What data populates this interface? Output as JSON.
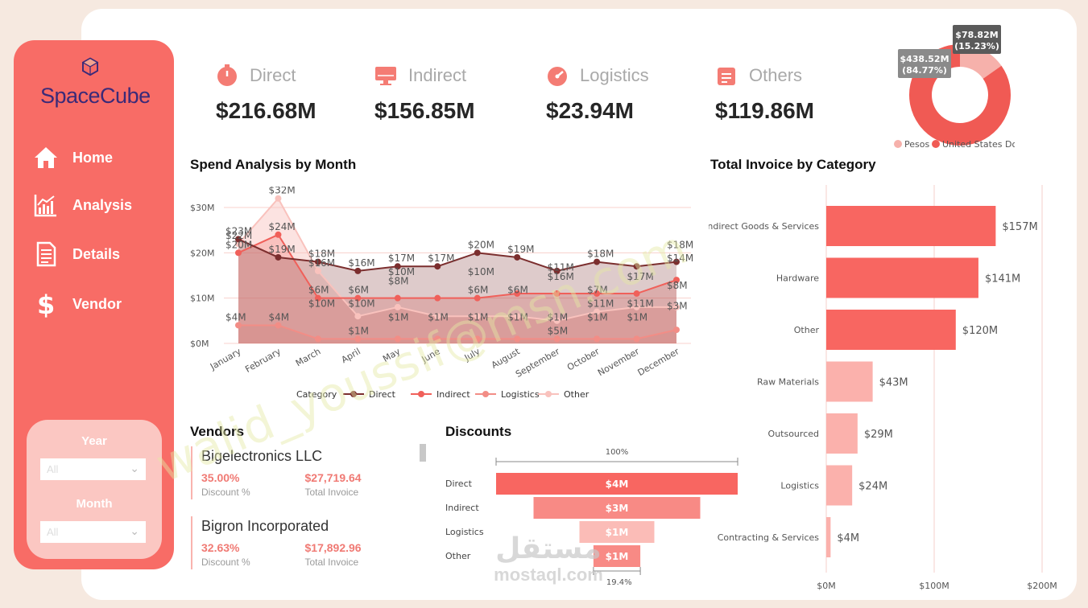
{
  "brand": {
    "name": "SpaceCube"
  },
  "nav": [
    {
      "label": "Home",
      "icon": "home-icon"
    },
    {
      "label": "Analysis",
      "icon": "analysis-icon"
    },
    {
      "label": "Details",
      "icon": "document-icon"
    },
    {
      "label": "Vendor",
      "icon": "dollar-icon"
    }
  ],
  "filters": {
    "year": {
      "label": "Year",
      "value": "All"
    },
    "month": {
      "label": "Month",
      "value": "All"
    }
  },
  "kpis": [
    {
      "label": "Direct",
      "value": "$216.68M",
      "icon": "timer-icon"
    },
    {
      "label": "Indirect",
      "value": "$156.85M",
      "icon": "monitor-icon"
    },
    {
      "label": "Logistics",
      "value": "$23.94M",
      "icon": "speed-icon"
    },
    {
      "label": "Others",
      "value": "$119.86M",
      "icon": "calendar-icon"
    }
  ],
  "colors": {
    "accent": "#f86c66",
    "direct": "#7b2e2e",
    "indirect": "#f0605a",
    "logistics": "#f28d86",
    "other": "#f9c2bd",
    "pesos": "#f6b1ab",
    "usd": "#f05a54"
  },
  "currency_donut": {
    "legend": [
      "Pesos",
      "United States Dollar"
    ],
    "labels": [
      "$78.82M\n(15.23%)",
      "$438.52M\n(84.77%)"
    ],
    "label_lines": [
      [
        "$78.82M",
        "(15.23%)"
      ],
      [
        "$438.52M",
        "(84.77%)"
      ]
    ],
    "chart_data": {
      "type": "pie",
      "categories": [
        "Pesos",
        "United States Dollar"
      ],
      "values": [
        78.82,
        438.52
      ],
      "percent": [
        15.23,
        84.77
      ]
    }
  },
  "spend": {
    "title": "Spend Analysis by Month",
    "legend_title": "Category",
    "legend": [
      "Direct",
      "Indirect",
      "Logistics",
      "Other"
    ],
    "y_ticks": [
      "$0M",
      "$10M",
      "$20M",
      "$30M"
    ],
    "chart_data": {
      "type": "area",
      "categories": [
        "January",
        "February",
        "March",
        "April",
        "May",
        "June",
        "July",
        "August",
        "September",
        "October",
        "November",
        "December"
      ],
      "ylim": [
        0,
        30
      ],
      "series": [
        {
          "name": "Direct",
          "values": [
            23,
            19,
            18,
            16,
            17,
            17,
            20,
            19,
            16,
            18,
            17,
            18
          ]
        },
        {
          "name": "Indirect",
          "values": [
            20,
            24,
            10,
            10,
            10,
            10,
            10,
            11,
            11,
            11,
            11,
            14
          ]
        },
        {
          "name": "Logistics",
          "values": [
            4,
            4,
            1,
            1,
            1,
            1,
            1,
            1,
            1,
            1,
            1,
            3
          ]
        },
        {
          "name": "Other",
          "values": [
            22,
            32,
            16,
            6,
            8,
            6,
            6,
            6,
            5,
            7,
            8,
            8
          ]
        }
      ],
      "data_labels": [
        {
          "text": "$23M",
          "m": 0,
          "v": 23
        },
        {
          "text": "$22M",
          "m": 0,
          "v": 22
        },
        {
          "text": "$20M",
          "m": 0,
          "v": 20
        },
        {
          "text": "$4M",
          "m": 0,
          "v": 4
        },
        {
          "text": "$32M",
          "m": 1,
          "v": 32
        },
        {
          "text": "$24M",
          "m": 1,
          "v": 24
        },
        {
          "text": "$19M",
          "m": 1,
          "v": 19
        },
        {
          "text": "$4M",
          "m": 1,
          "v": 4
        },
        {
          "text": "$18M",
          "m": 2,
          "v": 18
        },
        {
          "text": "$16M",
          "m": 2,
          "v": 16
        },
        {
          "text": "$6M",
          "m": 2,
          "v": 10
        },
        {
          "text": "$10M",
          "m": 2,
          "v": 7
        },
        {
          "text": "$16M",
          "m": 3,
          "v": 16
        },
        {
          "text": "$6M",
          "m": 3,
          "v": 10
        },
        {
          "text": "$10M",
          "m": 3,
          "v": 7
        },
        {
          "text": "$1M",
          "m": 3,
          "v": 1
        },
        {
          "text": "$17M",
          "m": 4,
          "v": 17
        },
        {
          "text": "$10M",
          "m": 4,
          "v": 14
        },
        {
          "text": "$8M",
          "m": 4,
          "v": 12
        },
        {
          "text": "$1M",
          "m": 4,
          "v": 4
        },
        {
          "text": "$17M",
          "m": 5,
          "v": 17
        },
        {
          "text": "$1M",
          "m": 5,
          "v": 4
        },
        {
          "text": "$20M",
          "m": 6,
          "v": 20
        },
        {
          "text": "$10M",
          "m": 6,
          "v": 14
        },
        {
          "text": "$6M",
          "m": 6,
          "v": 10
        },
        {
          "text": "$1M",
          "m": 6,
          "v": 4
        },
        {
          "text": "$19M",
          "m": 7,
          "v": 19
        },
        {
          "text": "$6M",
          "m": 7,
          "v": 10
        },
        {
          "text": "$1M",
          "m": 7,
          "v": 4
        },
        {
          "text": "$11M",
          "m": 8,
          "v": 15
        },
        {
          "text": "$16M",
          "m": 8,
          "v": 13
        },
        {
          "text": "$1M",
          "m": 8,
          "v": 4
        },
        {
          "text": "$5M",
          "m": 8,
          "v": 1
        },
        {
          "text": "$18M",
          "m": 9,
          "v": 18
        },
        {
          "text": "$7M",
          "m": 9,
          "v": 10
        },
        {
          "text": "$11M",
          "m": 9,
          "v": 7
        },
        {
          "text": "$1M",
          "m": 9,
          "v": 4
        },
        {
          "text": "$17M",
          "m": 10,
          "v": 13
        },
        {
          "text": "$11M",
          "m": 10,
          "v": 7
        },
        {
          "text": "$1M",
          "m": 10,
          "v": 4
        },
        {
          "text": "$18M",
          "m": 11,
          "v": 20
        },
        {
          "text": "$14M",
          "m": 11,
          "v": 17
        },
        {
          "text": "$8M",
          "m": 11,
          "v": 11
        },
        {
          "text": "$3M",
          "m": 11,
          "v": 6.5
        }
      ]
    }
  },
  "invoice": {
    "title": "Total Invoice by Category",
    "x_ticks": [
      "$0M",
      "$100M",
      "$200M"
    ],
    "chart_data": {
      "type": "bar",
      "orientation": "horizontal",
      "xlim": [
        0,
        200
      ],
      "categories": [
        "Indirect Goods & Services",
        "Hardware",
        "Other",
        "Raw Materials",
        "Outsourced",
        "Logistics",
        "Contracting & Services"
      ],
      "values": [
        157,
        141,
        120,
        43,
        29,
        24,
        4
      ],
      "labels": [
        "$157M",
        "$141M",
        "$120M",
        "$43M",
        "$29M",
        "$24M",
        "$4M"
      ]
    }
  },
  "vendors": {
    "title": "Vendors",
    "items": [
      {
        "name": "Bigelectronics LLC",
        "discount": "35.00%",
        "discount_label": "Discount %",
        "invoice": "$27,719.64",
        "invoice_label": "Total Invoice"
      },
      {
        "name": "Bigron Incorporated",
        "discount": "32.63%",
        "discount_label": "Discount %",
        "invoice": "$17,892.96",
        "invoice_label": "Total Invoice"
      }
    ]
  },
  "discounts": {
    "title": "Discounts",
    "top_label": "100%",
    "bottom_label": "19.4%",
    "chart_data": {
      "type": "bar",
      "subtype": "funnel",
      "categories": [
        "Direct",
        "Indirect",
        "Logistics",
        "Other"
      ],
      "values": [
        4,
        3,
        1,
        1
      ],
      "relative_width": [
        1.0,
        0.69,
        0.31,
        0.194
      ],
      "labels": [
        "$4M",
        "$3M",
        "$1M",
        "$1M"
      ]
    }
  },
  "watermarks": {
    "diagonal": "walid_youssif@msn.com",
    "logo_ar": "مستقل",
    "logo_en": "mostaql.com"
  }
}
